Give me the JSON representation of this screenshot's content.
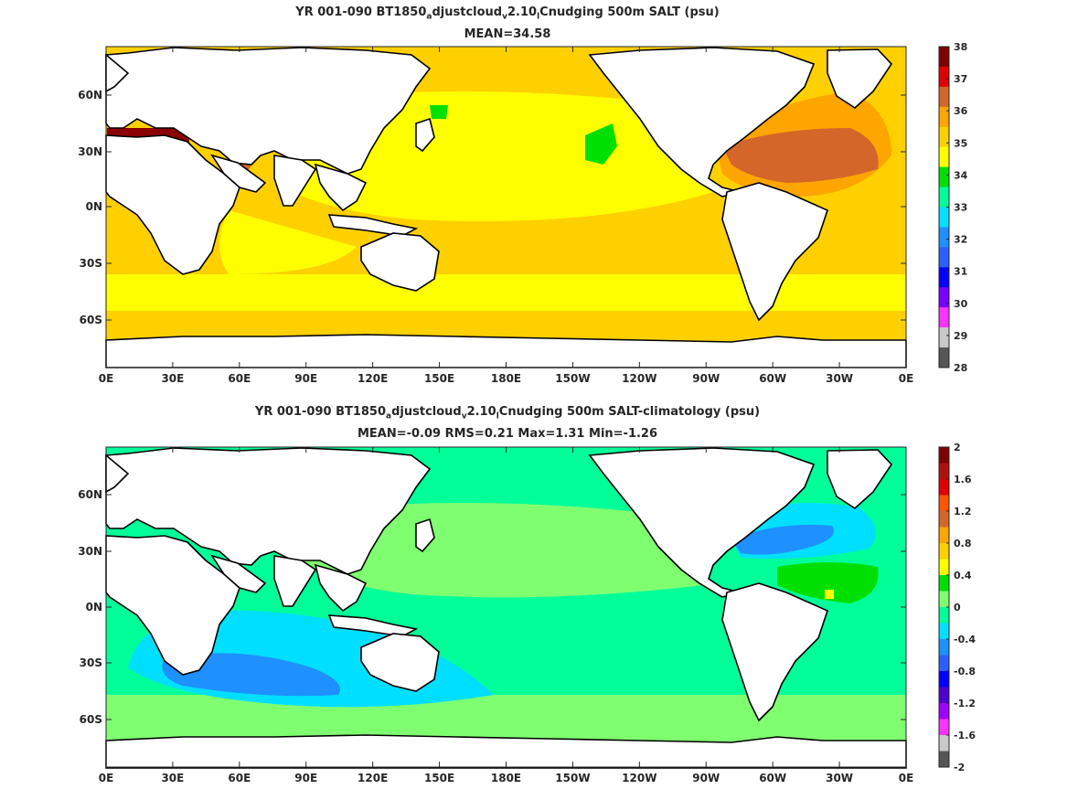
{
  "chart_data": [
    {
      "type": "heatmap",
      "title_parts": {
        "pre": "YR 001-090 BT1850",
        "sub1": "a",
        "mid1": "djustcloud",
        "sub2": "v",
        "mid2": "2.10",
        "sub3": "l",
        "post": "Cnudging 500m SALT (psu)"
      },
      "subtitle": "MEAN=34.58",
      "x_ticks": [
        "0E",
        "30E",
        "60E",
        "90E",
        "120E",
        "150E",
        "180E",
        "150W",
        "120W",
        "90W",
        "60W",
        "30W",
        "0E"
      ],
      "y_ticks": [
        "60N",
        "30N",
        "0N",
        "30S",
        "60S"
      ],
      "colorbar": {
        "ticks": [
          "38",
          "37",
          "36",
          "35",
          "34",
          "33",
          "32",
          "31",
          "30",
          "29",
          "28"
        ],
        "colors": [
          "#7f0000",
          "#e00000",
          "#d4662a",
          "#ffa500",
          "#ffd000",
          "#ffff00",
          "#00e000",
          "#00ff99",
          "#00dfff",
          "#1e90ff",
          "#2b5fff",
          "#0000ff",
          "#7a00ff",
          "#ff33ff",
          "#c8c8c8",
          "#555555"
        ]
      }
    },
    {
      "type": "heatmap",
      "title_parts": {
        "pre": "YR 001-090 BT1850",
        "sub1": "a",
        "mid1": "djustcloud",
        "sub2": "v",
        "mid2": "2.10",
        "sub3": "l",
        "post": "Cnudging 500m SALT-climatology (psu)"
      },
      "subtitle": "MEAN=-0.09   RMS=0.21   Max=1.31   Min=-1.26",
      "x_ticks": [
        "0E",
        "30E",
        "60E",
        "90E",
        "120E",
        "150E",
        "180E",
        "150W",
        "120W",
        "90W",
        "60W",
        "30W",
        "0E"
      ],
      "y_ticks": [
        "60N",
        "30N",
        "0N",
        "30S",
        "60S"
      ],
      "colorbar": {
        "ticks": [
          "2",
          "1.6",
          "1.2",
          "0.8",
          "0.4",
          "0",
          "-0.4",
          "-0.8",
          "-1.2",
          "-1.6",
          "-2"
        ],
        "colors": [
          "#7f0000",
          "#b01010",
          "#e00000",
          "#ff5500",
          "#d4662a",
          "#ffa500",
          "#ffd000",
          "#ffff00",
          "#00e000",
          "#7fff70",
          "#00ff99",
          "#00dfff",
          "#1e90ff",
          "#2b5fff",
          "#0000ff",
          "#5000cc",
          "#a000ff",
          "#ff33ff",
          "#c8c8c8",
          "#555555"
        ]
      }
    }
  ]
}
